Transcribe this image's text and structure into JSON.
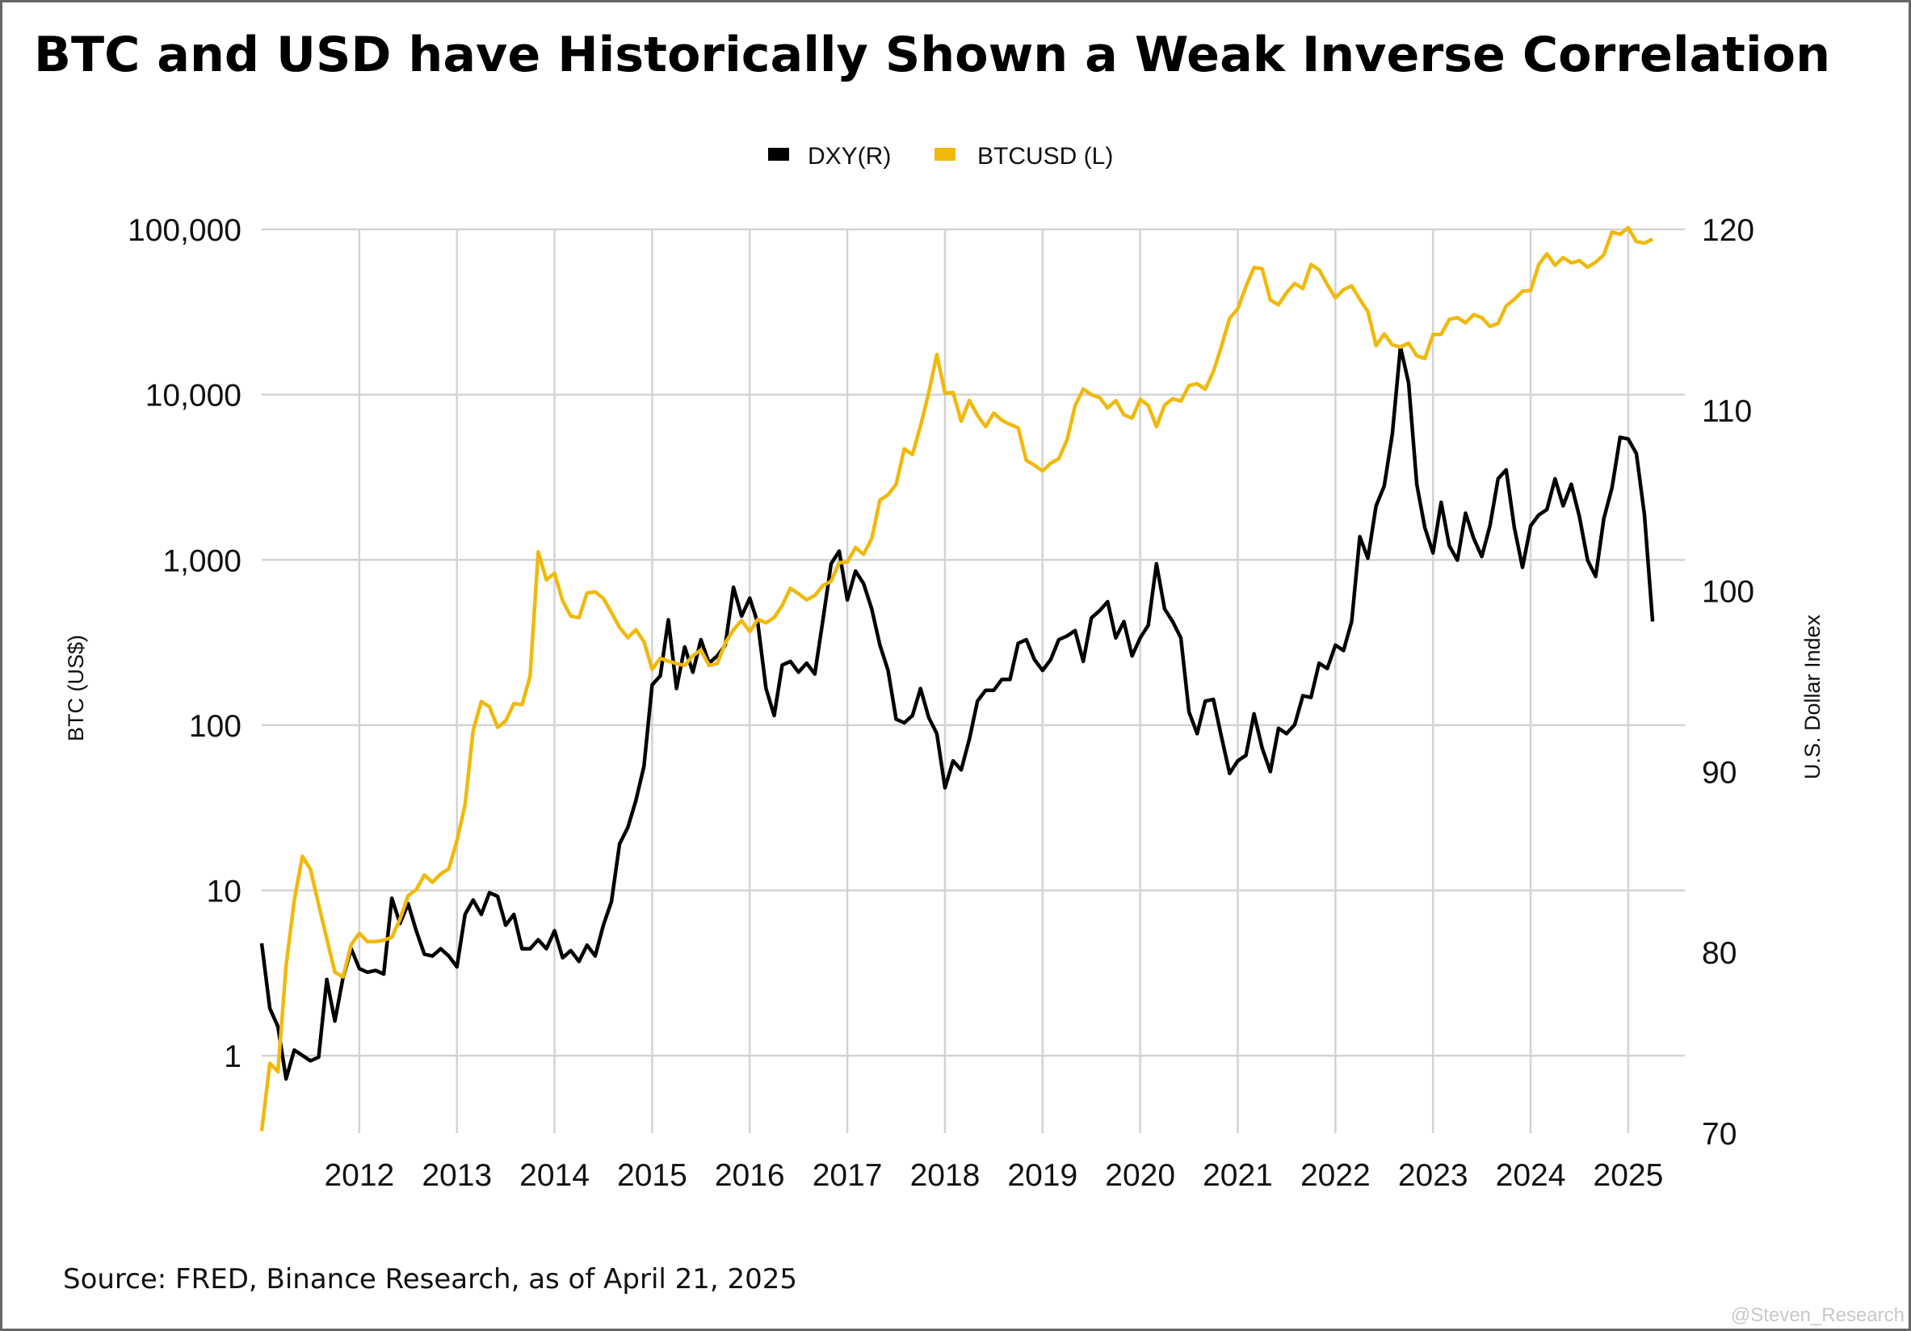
{
  "title": "BTC and USD have Historically Shown a Weak Inverse Correlation",
  "source": "Source: FRED, Binance Research, as of April 21, 2025",
  "watermark": "@Steven_Research",
  "colors": {
    "btc": "#F0B90B",
    "dxy": "#000000",
    "grid": "#d3d3d3"
  },
  "chart_data": {
    "type": "line",
    "title": "BTC and USD have Historically Shown a Weak Inverse Correlation",
    "legend": {
      "placement": "top-center",
      "entries": [
        "DXY(R)",
        "BTCUSD (L)"
      ]
    },
    "grid": true,
    "x": {
      "range": [
        "2011-01",
        "2025-04"
      ],
      "ticks": [
        "2012",
        "2013",
        "2014",
        "2015",
        "2016",
        "2017",
        "2018",
        "2019",
        "2020",
        "2021",
        "2022",
        "2023",
        "2024",
        "2025"
      ]
    },
    "y_left": {
      "label": "BTC (US$)",
      "scale": "log",
      "range": [
        0.34,
        100000
      ],
      "ticks": [
        1,
        10,
        100,
        1000,
        10000,
        100000
      ],
      "tick_labels": [
        "1",
        "10",
        "100",
        "1,000",
        "10,000",
        "100,000"
      ]
    },
    "y_right": {
      "label": "U.S. Dollar Index",
      "scale": "linear",
      "range": [
        70,
        120
      ],
      "ticks": [
        70,
        80,
        90,
        100,
        110,
        120
      ],
      "tick_labels": [
        "70",
        "80",
        "90",
        "100",
        "110",
        "120"
      ]
    },
    "start": "2011-01",
    "frequency": "monthly",
    "series": [
      {
        "name": "BTCUSD (L)",
        "axis": "left",
        "color": "#F0B90B",
        "values": [
          0.35,
          0.9,
          0.8,
          3.5,
          8.7,
          16.1,
          13.4,
          8.2,
          5.1,
          3.2,
          3.0,
          4.7,
          5.5,
          4.9,
          4.9,
          5.0,
          5.2,
          6.7,
          9.3,
          10.1,
          12.4,
          11.2,
          12.6,
          13.5,
          20,
          33,
          93,
          139,
          129,
          97,
          106,
          135,
          133,
          198,
          1120,
          757,
          830,
          565,
          457,
          447,
          630,
          640,
          585,
          480,
          390,
          338,
          378,
          320,
          218,
          254,
          244,
          236,
          230,
          263,
          285,
          230,
          236,
          314,
          378,
          430,
          368,
          437,
          416,
          448,
          531,
          673,
          624,
          573,
          609,
          700,
          742,
          963,
          970,
          1190,
          1080,
          1350,
          2300,
          2480,
          2870,
          4700,
          4340,
          6470,
          10230,
          17500,
          10200,
          10300,
          6900,
          9240,
          7500,
          6400,
          7730,
          7000,
          6600,
          6300,
          4000,
          3740,
          3450,
          3850,
          4100,
          5300,
          8570,
          10800,
          10000,
          9600,
          8300,
          9200,
          7550,
          7200,
          9350,
          8600,
          6400,
          8650,
          9450,
          9140,
          11350,
          11650,
          10780,
          13800,
          19700,
          29000,
          33100,
          45200,
          58800,
          57700,
          37300,
          35000,
          41500,
          47100,
          43800,
          61300,
          57000,
          46300,
          38500,
          43200,
          45500,
          37700,
          31800,
          19800,
          23300,
          20000,
          19400,
          20500,
          17200,
          16550,
          23100,
          23150,
          28500,
          29250,
          27200,
          30500,
          29200,
          25900,
          27000,
          34500,
          37700,
          42300,
          42600,
          61200,
          71300,
          60600,
          67500,
          62700,
          64600,
          59000,
          63300,
          70200,
          96400,
          93400,
          102400,
          84400,
          82500,
          87500
        ]
      },
      {
        "name": "DXY(R)",
        "axis": "right",
        "color": "#000000",
        "values": [
          80.5,
          76.9,
          75.9,
          73.0,
          74.6,
          74.3,
          74.0,
          74.2,
          78.5,
          76.2,
          78.6,
          80.2,
          79.1,
          78.9,
          79.0,
          78.8,
          83.0,
          81.6,
          82.7,
          81.2,
          79.9,
          79.8,
          80.2,
          79.8,
          79.2,
          82.1,
          82.9,
          82.1,
          83.3,
          83.1,
          81.5,
          82.1,
          80.2,
          80.2,
          80.7,
          80.2,
          81.2,
          79.7,
          80.1,
          79.5,
          80.4,
          79.8,
          81.5,
          82.8,
          86.0,
          86.9,
          88.4,
          90.3,
          94.8,
          95.3,
          98.4,
          94.6,
          96.9,
          95.5,
          97.3,
          96.0,
          96.4,
          97.0,
          100.2,
          98.6,
          99.6,
          98.2,
          94.6,
          93.1,
          95.9,
          96.1,
          95.5,
          96.0,
          95.4,
          98.4,
          101.5,
          102.2,
          99.5,
          101.1,
          100.4,
          99.0,
          97.0,
          95.6,
          92.9,
          92.7,
          93.1,
          94.6,
          93.0,
          92.1,
          89.1,
          90.6,
          90.1,
          91.8,
          93.9,
          94.5,
          94.5,
          95.1,
          95.1,
          97.1,
          97.3,
          96.2,
          95.6,
          96.2,
          97.3,
          97.5,
          97.8,
          96.1,
          98.5,
          98.9,
          99.4,
          97.4,
          98.3,
          96.4,
          97.4,
          98.1,
          101.5,
          99.0,
          98.3,
          97.4,
          93.3,
          92.1,
          93.9,
          94.0,
          91.9,
          89.9,
          90.6,
          90.9,
          93.2,
          91.3,
          90.0,
          92.4,
          92.1,
          92.6,
          94.2,
          94.1,
          96.0,
          95.7,
          97.0,
          96.7,
          98.3,
          103.0,
          101.8,
          104.7,
          105.8,
          108.7,
          113.5,
          111.5,
          105.9,
          103.5,
          102.1,
          104.9,
          102.5,
          101.7,
          104.3,
          102.9,
          101.9,
          103.6,
          106.2,
          106.7,
          103.5,
          101.3,
          103.6,
          104.2,
          104.5,
          106.2,
          104.7,
          105.9,
          104.1,
          101.7,
          100.8,
          104.0,
          105.7,
          108.5,
          108.4,
          107.6,
          104.2,
          98.3
        ]
      }
    ]
  }
}
